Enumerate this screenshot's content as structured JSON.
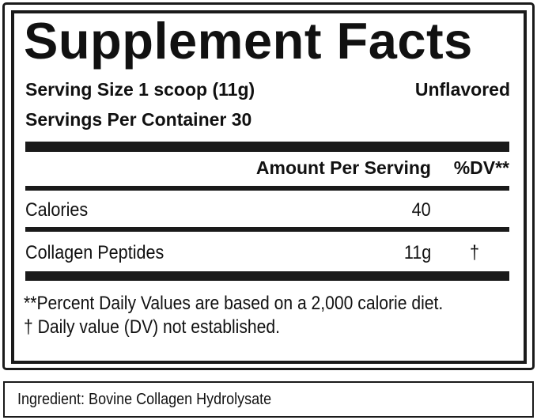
{
  "title": "Supplement Facts",
  "serving_size": "Serving Size 1 scoop (11g)",
  "flavor": "Unflavored",
  "servings_per_container": "Servings Per Container 30",
  "header": {
    "amount": "Amount Per Serving",
    "dv": "%DV**"
  },
  "rows": [
    {
      "name": "Calories",
      "amount": "40",
      "dv": ""
    },
    {
      "name": "Collagen Peptides",
      "amount": "11g",
      "dv": "†"
    }
  ],
  "footnotes": [
    "**Percent Daily Values are based on a 2,000 calorie diet.",
    "† Daily value (DV) not established."
  ],
  "ingredient": "Ingredient: Bovine Collagen Hydrolysate"
}
